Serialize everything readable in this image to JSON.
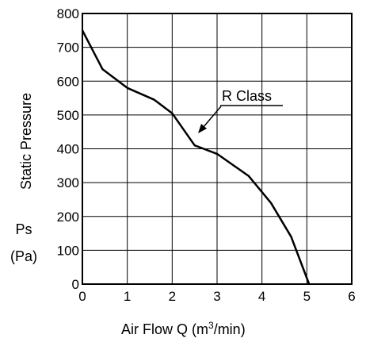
{
  "chart_data": {
    "type": "line",
    "series": [
      {
        "name": "R Class",
        "x": [
          0,
          0.45,
          1.0,
          1.6,
          2.0,
          2.5,
          3.0,
          3.7,
          4.2,
          4.65,
          5.05
        ],
        "y": [
          750,
          635,
          580,
          545,
          505,
          410,
          385,
          320,
          240,
          140,
          0
        ]
      }
    ],
    "xlim": [
      0,
      6
    ],
    "ylim": [
      0,
      800
    ],
    "x_ticks": [
      "0",
      "1",
      "2",
      "3",
      "4",
      "5",
      "6"
    ],
    "y_ticks": [
      "0",
      "100",
      "200",
      "300",
      "400",
      "500",
      "600",
      "700",
      "800"
    ],
    "xlabel": "Air Flow  Q  (m",
    "xlabel_sup": "3",
    "xlabel_tail": "/min)",
    "ylabel": "Static Pressure",
    "ylabel_symbol": "Ps",
    "ylabel_unit": "(Pa)",
    "annotation": "R Class",
    "grid": true,
    "legend": "none"
  }
}
